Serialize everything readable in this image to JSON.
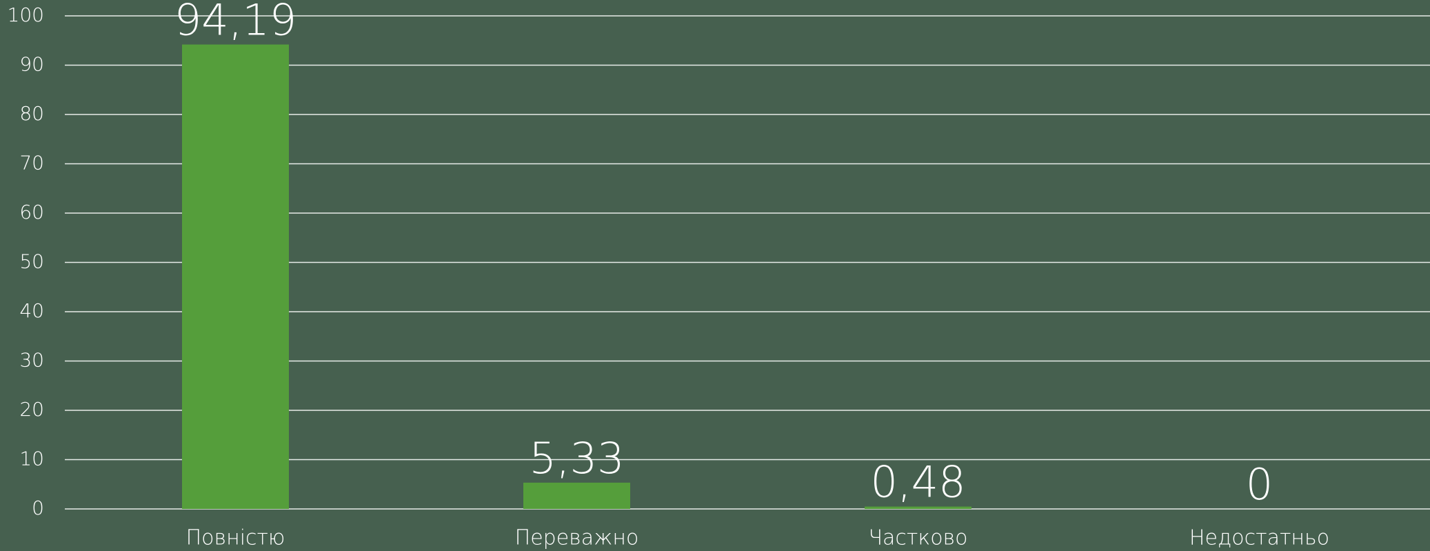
{
  "chart_data": {
    "type": "bar",
    "categories": [
      "Повністю",
      "Переважно",
      "Частково",
      "Недостатньо"
    ],
    "values": [
      94.19,
      5.33,
      0.48,
      0
    ],
    "value_labels": [
      "94,19",
      "5,33",
      "0,48",
      "0"
    ],
    "color": "#559e3b",
    "ylim": [
      0,
      100
    ],
    "yticks": [
      0,
      10,
      20,
      30,
      40,
      50,
      60,
      70,
      80,
      90,
      100
    ],
    "grid": true
  }
}
